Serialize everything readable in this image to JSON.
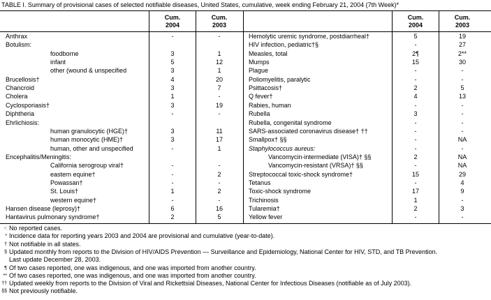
{
  "title": "TABLE I. Summary of provisional cases of selected notifiable diseases, United States, cumulative, week ending February 21, 2004 (7th Week)*",
  "table": {
    "left": {
      "headers": [
        {
          "line1": "Cum.",
          "line2": "2004"
        },
        {
          "line1": "Cum.",
          "line2": "2003"
        }
      ],
      "rows": [
        {
          "name": "Anthrax",
          "values": [
            "-",
            "-"
          ]
        },
        {
          "name": "Botulism:",
          "items": [
            {
              "name": "foodborne",
              "values": [
                "3",
                "1"
              ]
            },
            {
              "name": "infant",
              "values": [
                "5",
                "12"
              ]
            },
            {
              "name": "other (wound & unspecified",
              "values": [
                "3",
                "1"
              ]
            }
          ]
        },
        {
          "name": "Brucellosis†",
          "values": [
            "4",
            "20"
          ]
        },
        {
          "name": "Chancroid",
          "values": [
            "3",
            "7"
          ]
        },
        {
          "name": "Cholera",
          "values": [
            "1",
            "-"
          ]
        },
        {
          "name": "Cyclosporiasis†",
          "values": [
            "3",
            "19"
          ]
        },
        {
          "name": "Diphtheria",
          "values": [
            "-",
            "-"
          ]
        },
        {
          "name": "Ehrlichiosis:",
          "items": [
            {
              "name": "human granulocytic (HGE)†",
              "values": [
                "3",
                "11"
              ]
            },
            {
              "name": "human monocytic (HME)†",
              "values": [
                "3",
                "17"
              ]
            },
            {
              "name": "human, other and unspecified",
              "values": [
                "-",
                "1"
              ]
            }
          ]
        },
        {
          "name": "Encephalitis/Meningitis:",
          "items": [
            {
              "name": "California serogroup viral†",
              "values": [
                "-",
                "-"
              ]
            },
            {
              "name": "eastern equine†",
              "values": [
                "-",
                "2"
              ]
            },
            {
              "name": "Powassan†",
              "values": [
                "-",
                "-"
              ]
            },
            {
              "name": "St. Louis†",
              "values": [
                "1",
                "2"
              ]
            },
            {
              "name": "western equine†",
              "values": [
                "-",
                "-"
              ]
            }
          ]
        },
        {
          "name": "Hansen disease (leprosy)†",
          "values": [
            "6",
            "16"
          ]
        },
        {
          "name": "Hantavirus pulmonary syndrome†",
          "values": [
            "2",
            "5"
          ]
        }
      ]
    },
    "right": {
      "headers": [
        {
          "line1": "Cum.",
          "line2": "2004"
        },
        {
          "line1": "Cum.",
          "line2": "2003"
        }
      ],
      "rows": [
        {
          "name": "Hemolytic uremic syndrome, postdiarrheal†",
          "values": [
            "5",
            "19"
          ]
        },
        {
          "name": "HIV infection, pediatric†§",
          "values": [
            "-",
            "27"
          ]
        },
        {
          "name": "Measles, total",
          "values": [
            "2¶",
            "2**"
          ]
        },
        {
          "name": "Mumps",
          "values": [
            "15",
            "30"
          ]
        },
        {
          "name": "Plague",
          "values": [
            "-",
            "-"
          ]
        },
        {
          "name": "Poliomyelitis, paralytic",
          "values": [
            "-",
            "-"
          ]
        },
        {
          "name": "Psittacosis†",
          "values": [
            "2",
            "5"
          ]
        },
        {
          "name": "Q fever†",
          "values": [
            "4",
            "13"
          ]
        },
        {
          "name": "Rabies, human",
          "values": [
            "-",
            "-"
          ]
        },
        {
          "name": "Rubella",
          "values": [
            "3",
            "-"
          ]
        },
        {
          "name": "Rubella, congenital syndrome",
          "values": [
            "-",
            "-"
          ]
        },
        {
          "name": "SARS-associated coronavirus disease† ††",
          "values": [
            "-",
            "-"
          ]
        },
        {
          "name": "Smallpox† §§",
          "values": [
            "-",
            "NA"
          ]
        },
        {
          "name": "Staphylococcus aureus:",
          "style": "italic",
          "values": [
            "-",
            "-"
          ],
          "items": [
            {
              "name": "Vancomycin-intermediate (VISA)† §§",
              "values": [
                "2",
                "NA"
              ]
            },
            {
              "name": "Vancomycin-resistant (VRSA)† §§",
              "values": [
                "-",
                "NA"
              ]
            }
          ]
        },
        {
          "name": "Streptococcal toxic-shock syndrome†",
          "values": [
            "15",
            "29"
          ]
        },
        {
          "name": "Tetanus",
          "values": [
            "-",
            "4"
          ]
        },
        {
          "name": "Toxic-shock syndrome",
          "values": [
            "17",
            "9"
          ]
        },
        {
          "name": "Trichinosis",
          "values": [
            "1",
            "-"
          ]
        },
        {
          "name": "Tularemia†",
          "values": [
            "2",
            "3"
          ]
        },
        {
          "name": "Yellow fever",
          "values": [
            "-",
            "-"
          ]
        }
      ]
    }
  },
  "footnotes": [
    {
      "symbol": "-:",
      "text": "No reported cases."
    },
    {
      "symbol": "*",
      "text": "Incidence data for reporting years 2003 and 2004 are provisional and cumulative (year-to-date)."
    },
    {
      "symbol": "†",
      "text": "Not notifiable in all states."
    },
    {
      "symbol": "§",
      "text": "Updated monthly from reports to the Division of HIV/AIDS Prevention — Surveillance and Epidemiology, National Center for HIV, STD, and TB Prevention.",
      "continuation": "Last update December 28, 2003."
    },
    {
      "symbol": "¶",
      "text": "Of two cases reported, one was indigenous, and one was imported from another country."
    },
    {
      "symbol": "**",
      "text": "Of two cases reported, one was indigenous, and one was imported from another country."
    },
    {
      "symbol": "††",
      "text": "Updated weekly from reports to the Division of Viral and Rickettsial Diseases, National Center for Infectious Diseases (notifiable as of July 2003)."
    },
    {
      "symbol": "§§",
      "text": "Not previously notifiable."
    }
  ]
}
